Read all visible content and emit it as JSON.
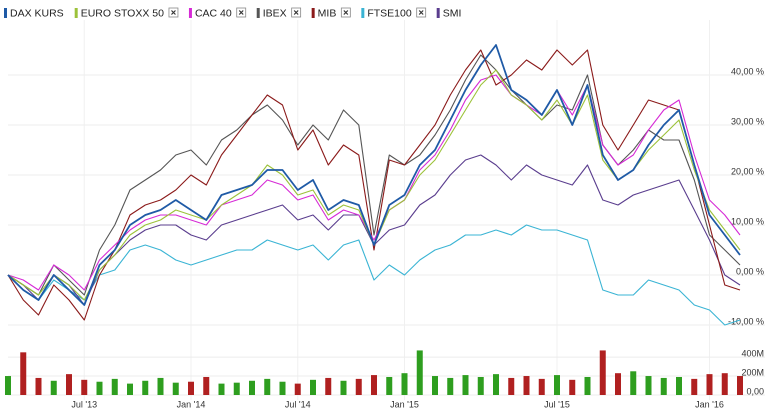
{
  "chart_data": [
    {
      "type": "line",
      "categories": [
        null,
        null,
        null,
        null,
        null,
        "Jul '13",
        null,
        null,
        null,
        null,
        null,
        null,
        "Jan '14",
        null,
        null,
        null,
        null,
        null,
        null,
        "Jul '14",
        null,
        null,
        null,
        null,
        null,
        null,
        "Jan '15",
        null,
        null,
        null,
        null,
        null,
        null,
        null,
        null,
        null,
        "Jul '15",
        null,
        null,
        null,
        null,
        null,
        null,
        null,
        null,
        null,
        "Jan '16",
        null,
        null
      ],
      "ylim": [
        -12,
        47
      ],
      "yticks": [
        {
          "value": -10,
          "label": "-10,00 %"
        },
        {
          "value": 0,
          "label": "0,00 %"
        },
        {
          "value": 10,
          "label": "10,00 %"
        },
        {
          "value": 20,
          "label": "20,00 %"
        },
        {
          "value": 30,
          "label": "30,00 %"
        },
        {
          "value": 40,
          "label": "40,00 %"
        }
      ],
      "grid": true,
      "series": [
        {
          "name": "DAX KURS",
          "color": "#1f5aa6",
          "removable": false,
          "values": [
            0,
            -3,
            -5,
            0,
            -3,
            -6,
            2,
            5,
            10,
            12,
            13,
            15,
            13,
            11,
            16,
            17,
            18,
            21,
            21,
            17,
            19,
            13,
            15,
            14,
            6,
            14,
            16,
            22,
            25,
            31,
            37,
            42,
            46,
            37,
            35,
            32,
            37,
            30,
            38,
            24,
            19,
            21,
            26,
            30,
            33,
            22,
            12,
            8,
            4
          ]
        },
        {
          "name": "EURO STOXX 50",
          "color": "#9cc23a",
          "removable": true,
          "values": [
            0,
            -2,
            -4,
            0,
            -2,
            -5,
            1,
            4,
            8,
            10,
            11,
            13,
            12,
            11,
            14,
            16,
            18,
            22,
            20,
            16,
            17,
            12,
            14,
            13,
            6,
            13,
            15,
            20,
            23,
            28,
            33,
            38,
            41,
            36,
            34,
            31,
            35,
            30,
            36,
            23,
            19,
            21,
            25,
            28,
            31,
            21,
            13,
            9,
            5
          ]
        },
        {
          "name": "CAC 40",
          "color": "#d62ad6",
          "removable": true,
          "values": [
            0,
            -1,
            -3,
            2,
            0,
            -3,
            3,
            6,
            9,
            11,
            12,
            12,
            11,
            10,
            14,
            15,
            16,
            19,
            18,
            15,
            16,
            11,
            13,
            12,
            7,
            13,
            15,
            21,
            24,
            29,
            35,
            39,
            40,
            36,
            34,
            32,
            37,
            32,
            38,
            26,
            22,
            24,
            29,
            33,
            35,
            24,
            15,
            12,
            8
          ]
        },
        {
          "name": "IBEX",
          "color": "#555555",
          "removable": true,
          "values": [
            0,
            -2,
            -4,
            2,
            -1,
            -4,
            5,
            10,
            17,
            19,
            21,
            24,
            25,
            22,
            27,
            29,
            32,
            34,
            31,
            26,
            30,
            27,
            33,
            30,
            8,
            24,
            22,
            24,
            28,
            33,
            39,
            44,
            41,
            37,
            34,
            31,
            34,
            33,
            40,
            26,
            22,
            25,
            29,
            27,
            27,
            19,
            8,
            5,
            2
          ]
        },
        {
          "name": "MIB",
          "color": "#8b1a1a",
          "removable": true,
          "values": [
            0,
            -5,
            -8,
            -2,
            -5,
            -9,
            0,
            5,
            12,
            14,
            15,
            17,
            20,
            18,
            24,
            28,
            32,
            36,
            34,
            25,
            29,
            22,
            26,
            24,
            5,
            23,
            22,
            26,
            30,
            36,
            41,
            45,
            38,
            40,
            43,
            41,
            45,
            42,
            45,
            30,
            25,
            30,
            35,
            34,
            33,
            22,
            10,
            -2,
            -3
          ]
        },
        {
          "name": "FTSE100",
          "color": "#3ab4d4",
          "removable": true,
          "values": [
            0,
            -3,
            -5,
            -1,
            -3,
            -5,
            0,
            1,
            5,
            6,
            5,
            3,
            2,
            3,
            4,
            5,
            5,
            7,
            6,
            5,
            6,
            3,
            6,
            7,
            -1,
            2,
            0,
            3,
            5,
            6,
            8,
            8,
            9,
            8,
            10,
            9,
            9,
            8,
            7,
            -3,
            -4,
            -4,
            -1,
            -2,
            -3,
            -6,
            -7,
            -10,
            -9
          ]
        },
        {
          "name": "SMI",
          "color": "#5a3d8e",
          "removable": false,
          "values": [
            0,
            -2,
            -5,
            0,
            -2,
            -6,
            1,
            4,
            7,
            9,
            10,
            10,
            8,
            7,
            10,
            11,
            12,
            13,
            14,
            11,
            12,
            9,
            12,
            12,
            6,
            9,
            10,
            14,
            16,
            20,
            23,
            24,
            22,
            19,
            22,
            20,
            19,
            18,
            22,
            15,
            14,
            16,
            17,
            18,
            19,
            13,
            7,
            0,
            -2
          ]
        }
      ]
    },
    {
      "type": "bar",
      "ylim": [
        0,
        580
      ],
      "yticks": [
        {
          "value": 0,
          "label": "0,00"
        },
        {
          "value": 200,
          "label": "200M"
        },
        {
          "value": 400,
          "label": "400M"
        }
      ],
      "up_color": "#2e9e1f",
      "down_color": "#b02020",
      "values": [
        200,
        450,
        180,
        150,
        220,
        160,
        140,
        170,
        120,
        150,
        180,
        130,
        140,
        190,
        120,
        130,
        150,
        170,
        140,
        120,
        160,
        180,
        150,
        170,
        210,
        190,
        230,
        470,
        200,
        180,
        210,
        190,
        220,
        180,
        200,
        170,
        210,
        160,
        190,
        470,
        230,
        250,
        200,
        180,
        190,
        170,
        220,
        230,
        200
      ]
    }
  ]
}
